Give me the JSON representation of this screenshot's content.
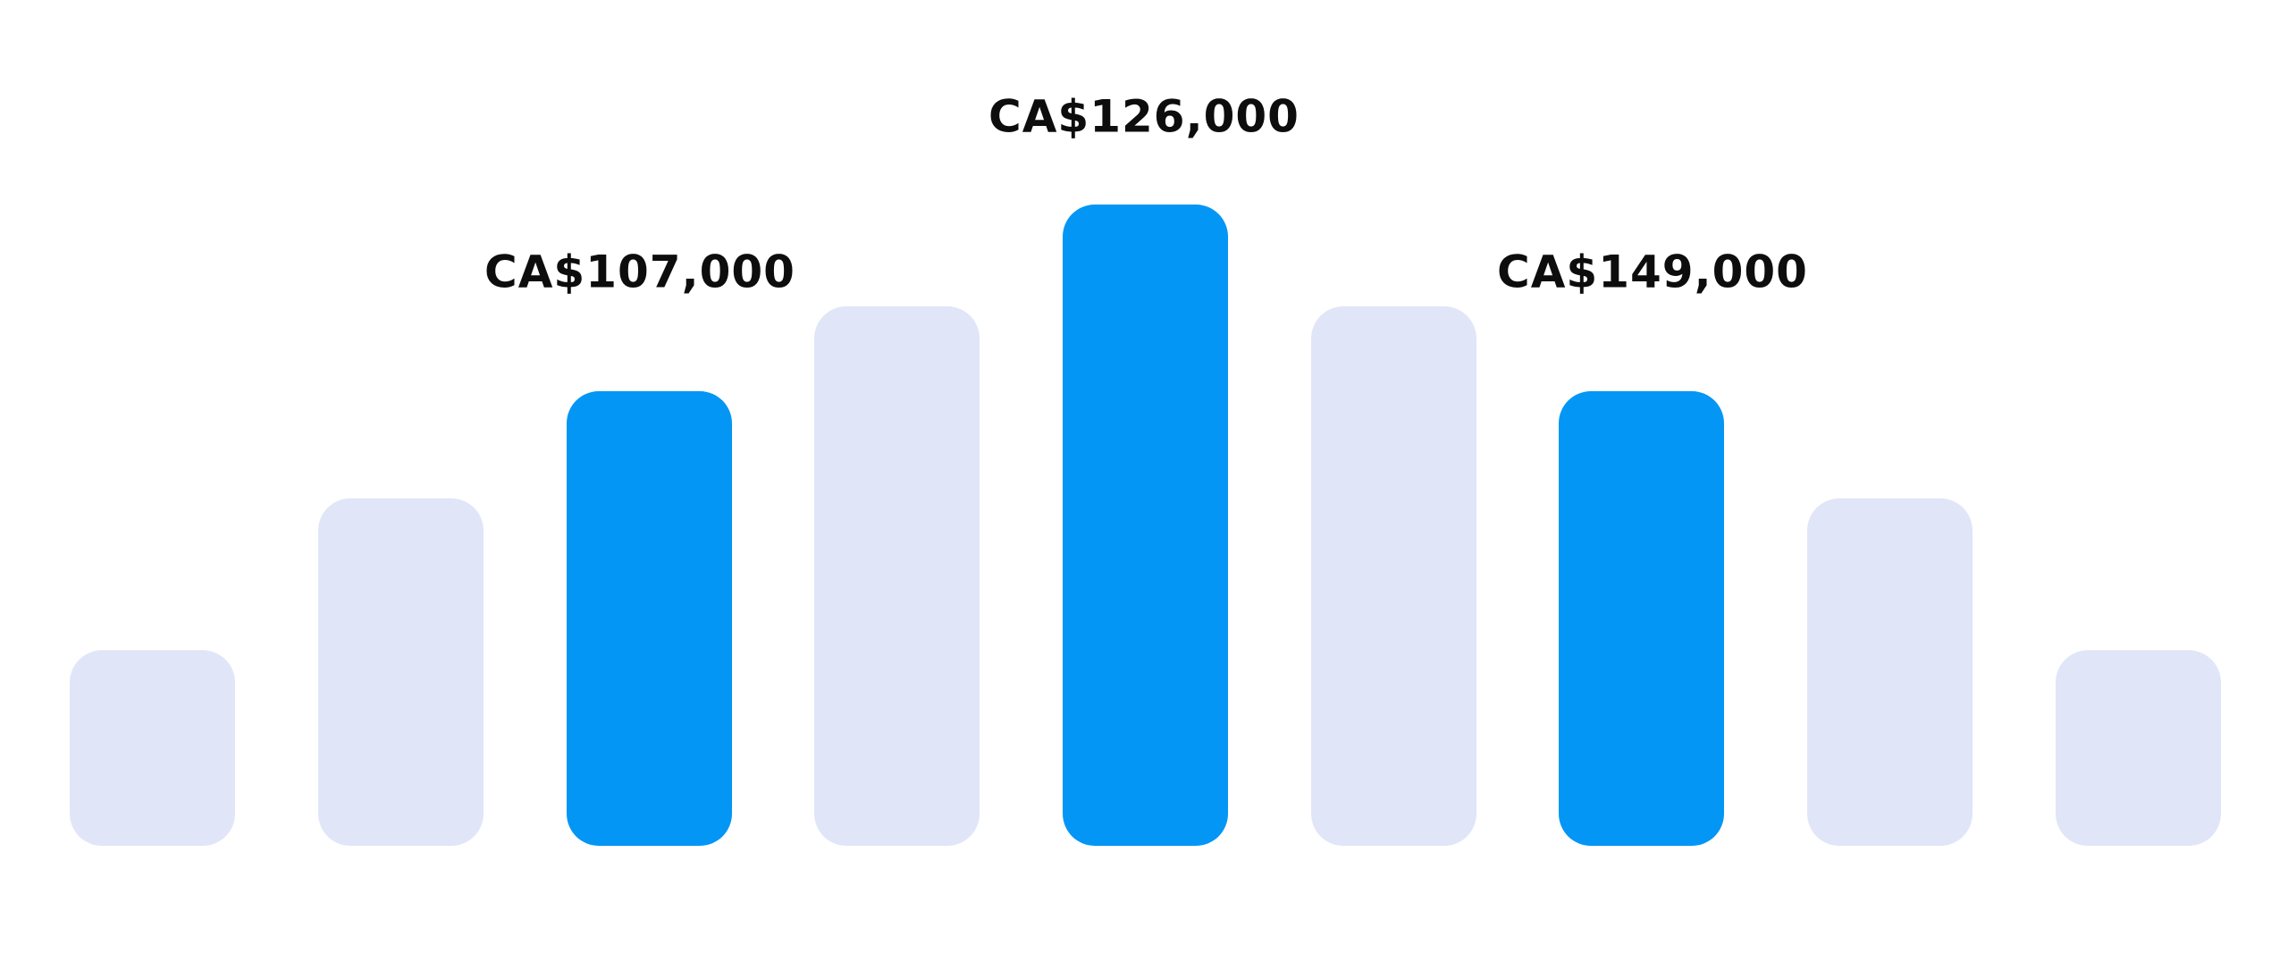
{
  "labels": [
    "CA$107,000",
    "CA$126,000",
    "CA$149,000"
  ]
}
